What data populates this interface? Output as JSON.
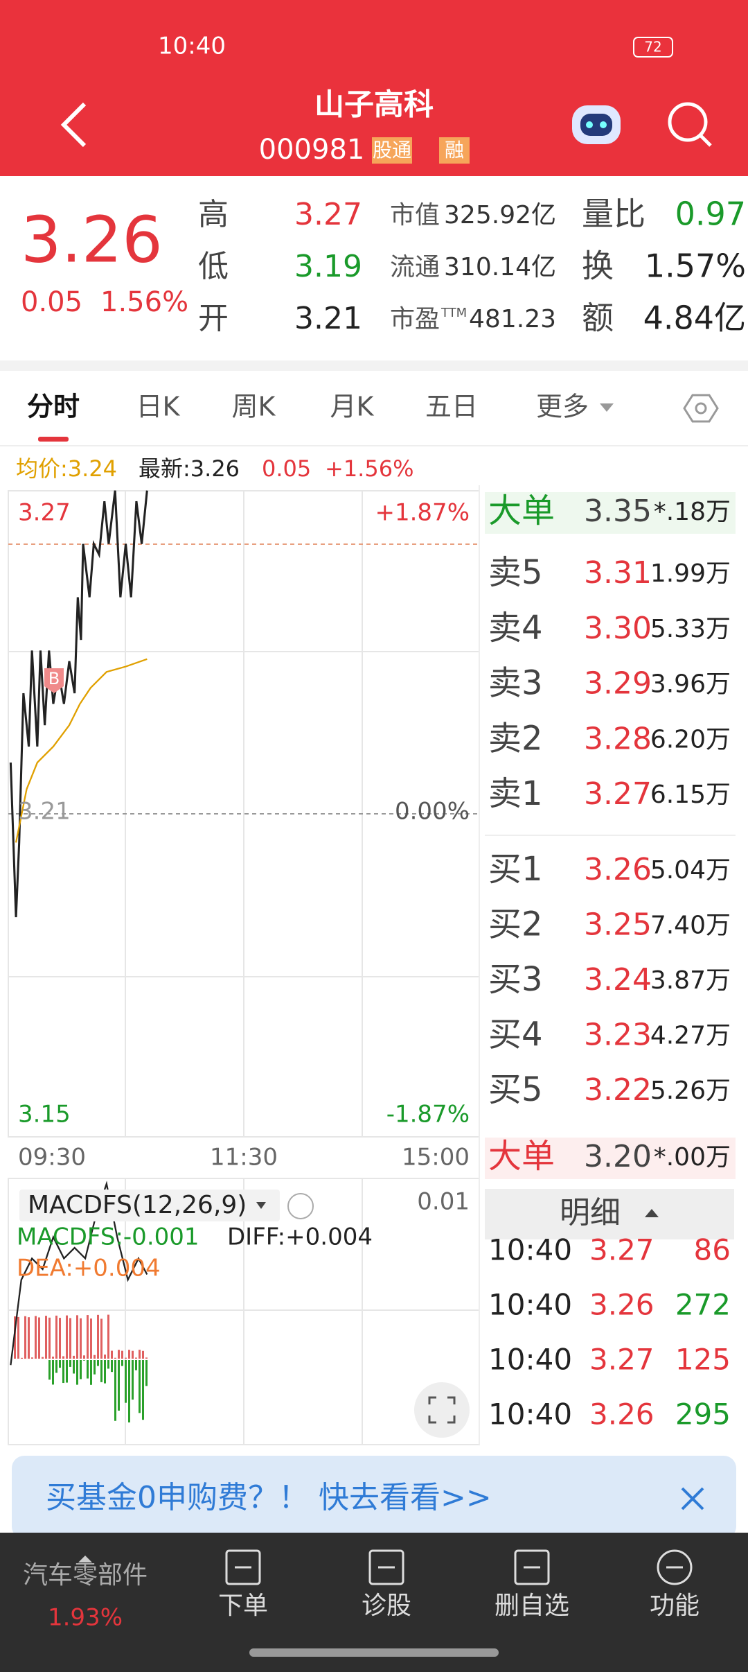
{
  "status_bar": {
    "time": "10:40",
    "battery": "72"
  },
  "header": {
    "title": "山子高科",
    "code": "000981",
    "badges": [
      "股通",
      "融"
    ]
  },
  "quote": {
    "price": "3.26",
    "change": "0.05",
    "change_pct": "1.56%",
    "rows": [
      {
        "label": "高",
        "value": "3.27",
        "value_color": "#e4353c",
        "label2": "市值",
        "value2": "325.92亿",
        "label3": "量比",
        "value3": "0.97",
        "value3_color": "#1a9a2a"
      },
      {
        "label": "低",
        "value": "3.19",
        "value_color": "#1a9a2a",
        "label2": "流通",
        "value2": "310.14亿",
        "label3": "换",
        "value3": "1.57%",
        "value3_color": "#222222"
      },
      {
        "label": "开",
        "value": "3.21",
        "value_color": "#222222",
        "label2": "市盈",
        "label2_sup": "TTM",
        "value2": "481.23",
        "label3": "额",
        "value3": "4.84亿",
        "value3_color": "#222222"
      }
    ]
  },
  "tabs": [
    "分时",
    "日K",
    "周K",
    "月K",
    "五日",
    "更多"
  ],
  "info": {
    "avg": "均价:3.24",
    "latest": "最新:3.26",
    "change": "0.05",
    "pct": "+1.56%"
  },
  "chart": {
    "top_price": "3.27",
    "top_pct": "+1.87%",
    "mid_price": "3.21",
    "mid_pct": "0.00%",
    "bottom_price": "3.15",
    "bottom_pct": "-1.87%",
    "times": [
      "09:30",
      "11:30",
      "15:00"
    ],
    "marker": "B"
  },
  "macd": {
    "name": "MACDFS(12,26,9)",
    "scale": "0.01",
    "macdfs": "MACDFS:-0.001",
    "diff": "DIFF:+0.004",
    "dea": "DEA:+0.004"
  },
  "order_book": {
    "big_sell": {
      "label": "大单",
      "price": "3.35",
      "volume": "*.18万"
    },
    "asks": [
      {
        "label": "卖5",
        "price": "3.31",
        "volume": "1.99万"
      },
      {
        "label": "卖4",
        "price": "3.30",
        "volume": "5.33万"
      },
      {
        "label": "卖3",
        "price": "3.29",
        "volume": "3.96万"
      },
      {
        "label": "卖2",
        "price": "3.28",
        "volume": "6.20万"
      },
      {
        "label": "卖1",
        "price": "3.27",
        "volume": "6.15万"
      }
    ],
    "bids": [
      {
        "label": "买1",
        "price": "3.26",
        "volume": "5.04万"
      },
      {
        "label": "买2",
        "price": "3.25",
        "volume": "7.40万"
      },
      {
        "label": "买3",
        "price": "3.24",
        "volume": "3.87万"
      },
      {
        "label": "买4",
        "price": "3.23",
        "volume": "4.27万"
      },
      {
        "label": "买5",
        "price": "3.22",
        "volume": "5.26万"
      }
    ],
    "big_buy": {
      "label": "大单",
      "price": "3.20",
      "volume": "*.00万"
    }
  },
  "details": {
    "title": "明细",
    "trades": [
      {
        "time": "10:40",
        "price": "3.27",
        "volume": "86",
        "color": "#e4353c"
      },
      {
        "time": "10:40",
        "price": "3.26",
        "volume": "272",
        "color": "#1a9a2a"
      },
      {
        "time": "10:40",
        "price": "3.27",
        "volume": "125",
        "color": "#e4353c"
      },
      {
        "time": "10:40",
        "price": "3.26",
        "volume": "295",
        "color": "#1a9a2a"
      }
    ]
  },
  "banner": {
    "text": "买基金0申购费？！ 快去看看>>"
  },
  "bottom_nav": {
    "sector": "汽车零部件",
    "sector_pct": "1.93%",
    "items": [
      "下单",
      "诊股",
      "删自选",
      "功能"
    ]
  }
}
